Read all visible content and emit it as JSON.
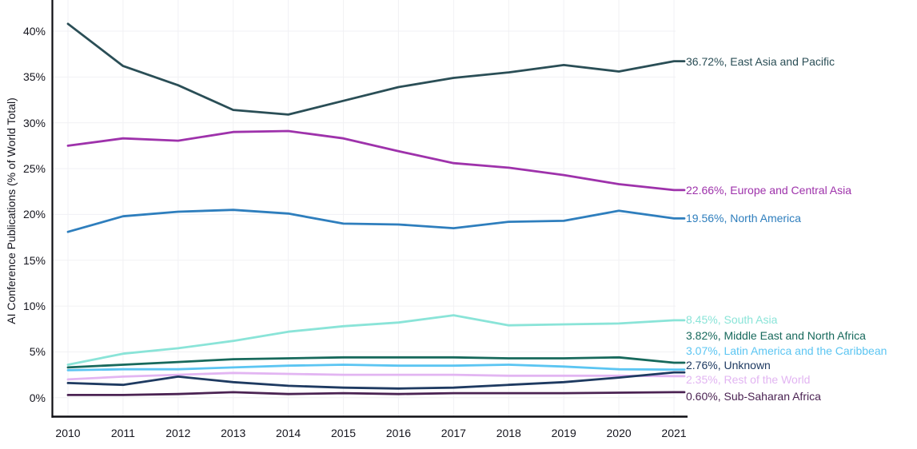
{
  "chart_data": {
    "type": "line",
    "title": "",
    "xlabel": "",
    "ylabel": "AI Conference Publications (% of World Total)",
    "x_years": [
      2010,
      2011,
      2012,
      2013,
      2014,
      2015,
      2016,
      2017,
      2018,
      2019,
      2020,
      2021
    ],
    "x_tick_labels": [
      "2010",
      "2011",
      "2012",
      "2013",
      "2014",
      "2015",
      "2016",
      "2017",
      "2018",
      "2019",
      "2020",
      "2021"
    ],
    "y_tick_values": [
      0,
      5,
      10,
      15,
      20,
      25,
      30,
      35,
      40
    ],
    "y_tick_labels": [
      "0%",
      "5%",
      "10%",
      "15%",
      "20%",
      "25%",
      "30%",
      "35%",
      "40%"
    ],
    "ylim": [
      0,
      43
    ],
    "grid": true,
    "legend_position": "right-end-labels",
    "colors": {
      "grid": "#f1f1f4",
      "axis": "#0d0d12",
      "tick_text": "#15151e"
    },
    "series": [
      {
        "name": "East Asia and Pacific",
        "color": "#2a4e56",
        "end_label": "36.72%, East Asia and Pacific",
        "end_value": 36.72,
        "values": [
          40.8,
          36.2,
          34.1,
          31.4,
          30.9,
          32.4,
          33.9,
          34.9,
          35.5,
          36.3,
          35.6,
          36.72
        ]
      },
      {
        "name": "Europe and Central Asia",
        "color": "#9e32ab",
        "end_label": "22.66%, Europe and Central Asia",
        "end_value": 22.66,
        "values": [
          27.5,
          28.3,
          28.05,
          29.0,
          29.1,
          28.3,
          26.9,
          25.6,
          25.1,
          24.3,
          23.3,
          22.66
        ]
      },
      {
        "name": "North America",
        "color": "#2e7ebd",
        "end_label": "19.56%, North America",
        "end_value": 19.56,
        "values": [
          18.1,
          19.8,
          20.3,
          20.5,
          20.1,
          19.0,
          18.9,
          18.5,
          19.2,
          19.3,
          20.4,
          19.56
        ]
      },
      {
        "name": "South Asia",
        "color": "#8ae4d8",
        "end_label": "8.45%, South Asia",
        "end_value": 8.45,
        "values": [
          3.6,
          4.8,
          5.4,
          6.2,
          7.2,
          7.8,
          8.2,
          9.0,
          7.9,
          8.0,
          8.1,
          8.45
        ]
      },
      {
        "name": "Middle East and North Africa",
        "color": "#17695c",
        "end_label": "3.82%, Middle East and North Africa",
        "end_value": 3.82,
        "values": [
          3.3,
          3.6,
          3.9,
          4.2,
          4.3,
          4.4,
          4.4,
          4.4,
          4.3,
          4.3,
          4.4,
          3.82
        ]
      },
      {
        "name": "Latin America and the Caribbean",
        "color": "#5bc5f2",
        "end_label": "3.07%, Latin America and the Caribbean",
        "end_value": 3.07,
        "values": [
          3.0,
          3.1,
          3.1,
          3.3,
          3.5,
          3.6,
          3.5,
          3.5,
          3.6,
          3.4,
          3.1,
          3.07
        ]
      },
      {
        "name": "Unknown",
        "color": "#1e3a61",
        "end_label": "2.76%, Unknown",
        "end_value": 2.76,
        "values": [
          1.6,
          1.4,
          2.3,
          1.7,
          1.3,
          1.1,
          1.0,
          1.1,
          1.4,
          1.7,
          2.2,
          2.76
        ]
      },
      {
        "name": "Rest of the World",
        "color": "#e2b5f2",
        "end_label": "2.35%, Rest of the World",
        "end_value": 2.35,
        "values": [
          2.0,
          2.3,
          2.5,
          2.7,
          2.6,
          2.5,
          2.5,
          2.5,
          2.4,
          2.4,
          2.4,
          2.35
        ]
      },
      {
        "name": "Sub-Saharan Africa",
        "color": "#4b2353",
        "end_label": "0.60%, Sub-Saharan Africa",
        "end_value": 0.6,
        "values": [
          0.3,
          0.3,
          0.4,
          0.6,
          0.4,
          0.5,
          0.4,
          0.5,
          0.5,
          0.5,
          0.55,
          0.6
        ]
      }
    ]
  }
}
